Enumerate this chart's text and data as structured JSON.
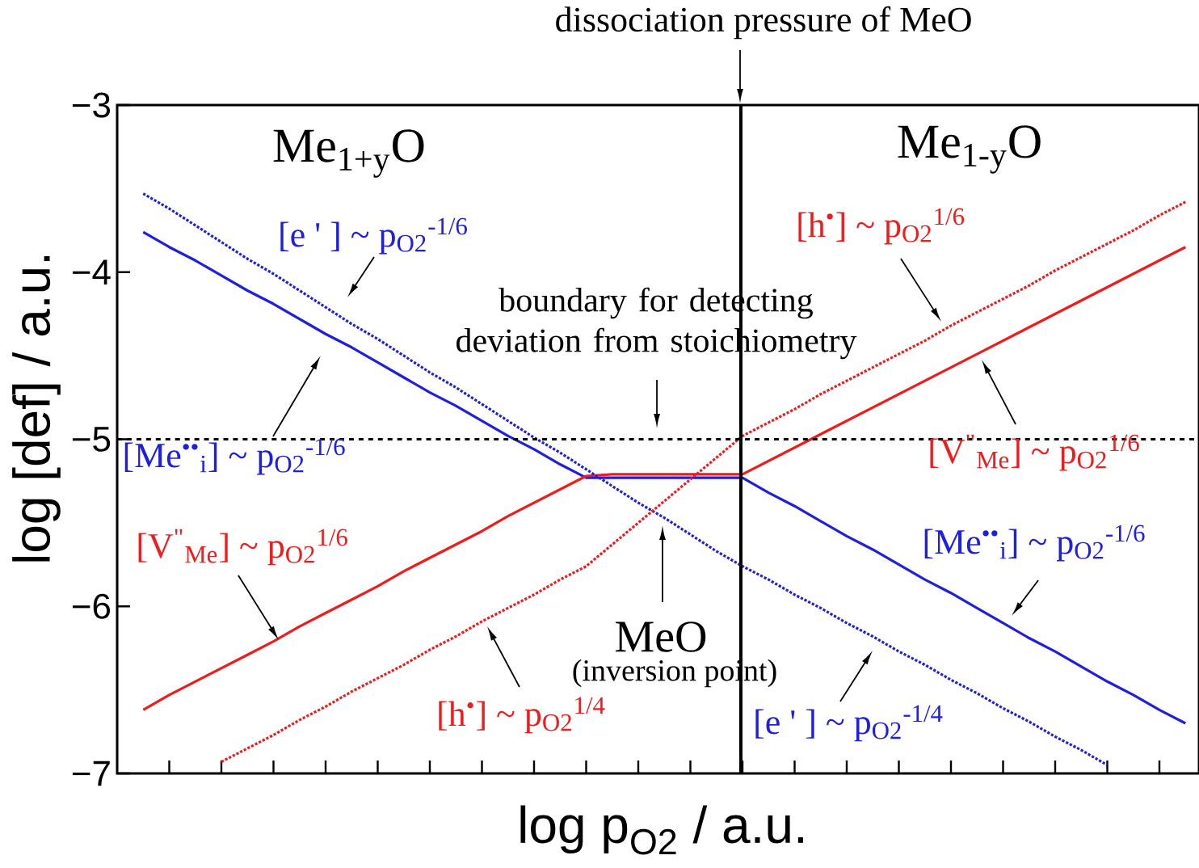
{
  "chart_data": {
    "type": "line",
    "xlabel": "log p$_{O2}$   / a.u.",
    "ylabel": "log [def]   / a.u.",
    "categories": [
      null,
      null,
      null,
      null,
      null,
      null,
      null,
      null,
      null,
      null,
      null,
      null,
      null,
      null,
      null,
      null,
      null,
      null,
      null,
      null,
      null,
      null,
      null,
      null,
      null,
      null,
      null,
      null,
      null,
      null,
      null,
      null,
      null,
      null,
      null,
      null,
      null,
      null,
      null,
      null,
      null
    ],
    "ylim": [
      -7,
      -3
    ],
    "yticks": [
      {
        "value": -3,
        "label": "−3"
      },
      {
        "value": -4,
        "label": "−4"
      },
      {
        "value": -5,
        "label": "−5"
      },
      {
        "value": -6,
        "label": "−6"
      },
      {
        "value": -7,
        "label": "−7"
      }
    ],
    "tick_labels": "y",
    "series": [
      {
        "color": "#1f1fe0",
        "line_style": "solid",
        "values": [
          -3.76,
          -3.85,
          -3.93,
          -4.02,
          -4.11,
          -4.19,
          -4.28,
          -4.37,
          -4.45,
          -4.54,
          -4.63,
          -4.72,
          -4.8,
          -4.89,
          -4.98,
          -5.06,
          -5.15,
          -5.23,
          -5.23,
          -5.23,
          -5.23,
          -5.23,
          -5.23,
          -5.23,
          -5.32,
          -5.4,
          -5.49,
          -5.58,
          -5.66,
          -5.75,
          -5.84,
          -5.92,
          -6.01,
          -6.1,
          -6.19,
          -6.27,
          -6.36,
          -6.45,
          -6.53,
          -6.62,
          -6.7
        ]
      },
      {
        "color": "#ee1c1c",
        "line_style": "solid",
        "values": [
          -6.62,
          -6.53,
          -6.45,
          -6.37,
          -6.29,
          -6.21,
          -6.12,
          -6.04,
          -5.96,
          -5.88,
          -5.79,
          -5.71,
          -5.63,
          -5.55,
          -5.46,
          -5.38,
          -5.3,
          -5.22,
          -5.21,
          -5.21,
          -5.21,
          -5.21,
          -5.21,
          -5.21,
          -5.13,
          -5.05,
          -4.97,
          -4.89,
          -4.81,
          -4.73,
          -4.65,
          -4.57,
          -4.49,
          -4.41,
          -4.33,
          -4.25,
          -4.17,
          -4.09,
          -4.01,
          -3.93,
          -3.85
        ]
      },
      {
        "color": "#1f1fe0",
        "line_style": "dotted",
        "values": [
          -3.53,
          -3.62,
          -3.72,
          -3.82,
          -3.92,
          -4.01,
          -4.11,
          -4.21,
          -4.31,
          -4.4,
          -4.5,
          -4.6,
          -4.69,
          -4.79,
          -4.89,
          -4.99,
          -5.08,
          -5.18,
          -5.28,
          -5.38,
          -5.47,
          -5.57,
          -5.67,
          -5.76,
          -5.84,
          -5.93,
          -6.01,
          -6.1,
          -6.18,
          -6.27,
          -6.35,
          -6.44,
          -6.52,
          -6.61,
          -6.69,
          -6.78,
          -6.86,
          -6.95,
          null,
          null,
          null
        ]
      },
      {
        "color": "#ee1c1c",
        "line_style": "dotted",
        "values": [
          null,
          null,
          null,
          -6.93,
          -6.85,
          -6.77,
          -6.68,
          -6.6,
          -6.51,
          -6.43,
          -6.35,
          -6.26,
          -6.18,
          -6.09,
          -6.01,
          -5.93,
          -5.84,
          -5.76,
          -5.63,
          -5.5,
          -5.37,
          -5.24,
          -5.11,
          -4.98,
          -4.9,
          -4.82,
          -4.73,
          -4.65,
          -4.57,
          -4.49,
          -4.41,
          -4.32,
          -4.24,
          -4.16,
          -4.08,
          -3.99,
          -3.91,
          -3.83,
          -3.75,
          -3.66,
          -3.58
        ]
      }
    ],
    "ref_lines": [
      {
        "axis": "y",
        "value": -5,
        "color": "#000000",
        "line_style": "dashed"
      }
    ],
    "annotations": [
      "Me$_{1+y}$O",
      "Me$_{1-y}$O",
      "boundary for detecting deviation from stoichiometry",
      "MeO",
      "(inversion point)",
      "[e ' ] ~ p$_{O2}$$^{-1/6}$",
      "[Me$^{••}$$_{i}$] ~ p$_{O2}$$^{-1/6}$",
      "[V$^{\"}$$_{Me}$] ~ p$_{O2}$$^{1/6}$",
      "[h$^{•}$] ~ p$_{O2}$$^{1/4}$",
      "[h$^{•}$] ~ p$_{O2}$$^{1/6}$",
      "[V$^{\"}$$_{Me}$] ~ p$_{O2}$$^{1/6}$",
      "[Me$^{••}$$_{i}$] ~ p$_{O2}$$^{-1/6}$",
      "[e ' ] ~ p$_{O2}$$^{-1/4}$",
      "dissociation pressure of MeO"
    ]
  }
}
